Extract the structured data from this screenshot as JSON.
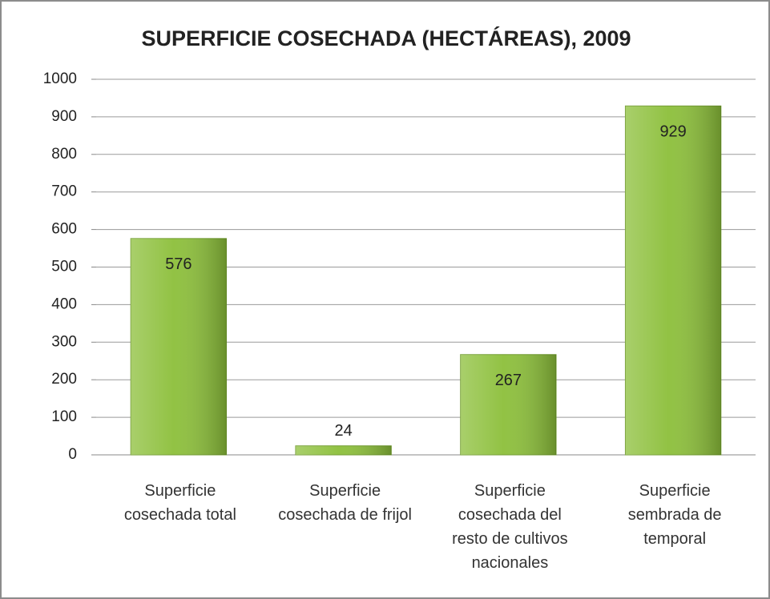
{
  "chart_data": {
    "type": "bar",
    "title": "SUPERFICIE COSECHADA (HECTÁREAS), 2009",
    "categories": [
      "Superficie\ncosechada total",
      "Superficie\ncosechada de frijol",
      "Superficie\ncosechada del\nresto de cultivos\nnacionales",
      "Superficie\nsembrada de\ntemporal"
    ],
    "values": [
      576,
      24,
      267,
      929
    ],
    "color": "#8cbf3a",
    "ylim": [
      0,
      1000
    ],
    "yticks": [
      0,
      100,
      200,
      300,
      400,
      500,
      600,
      700,
      800,
      900,
      1000
    ],
    "grid": true
  }
}
